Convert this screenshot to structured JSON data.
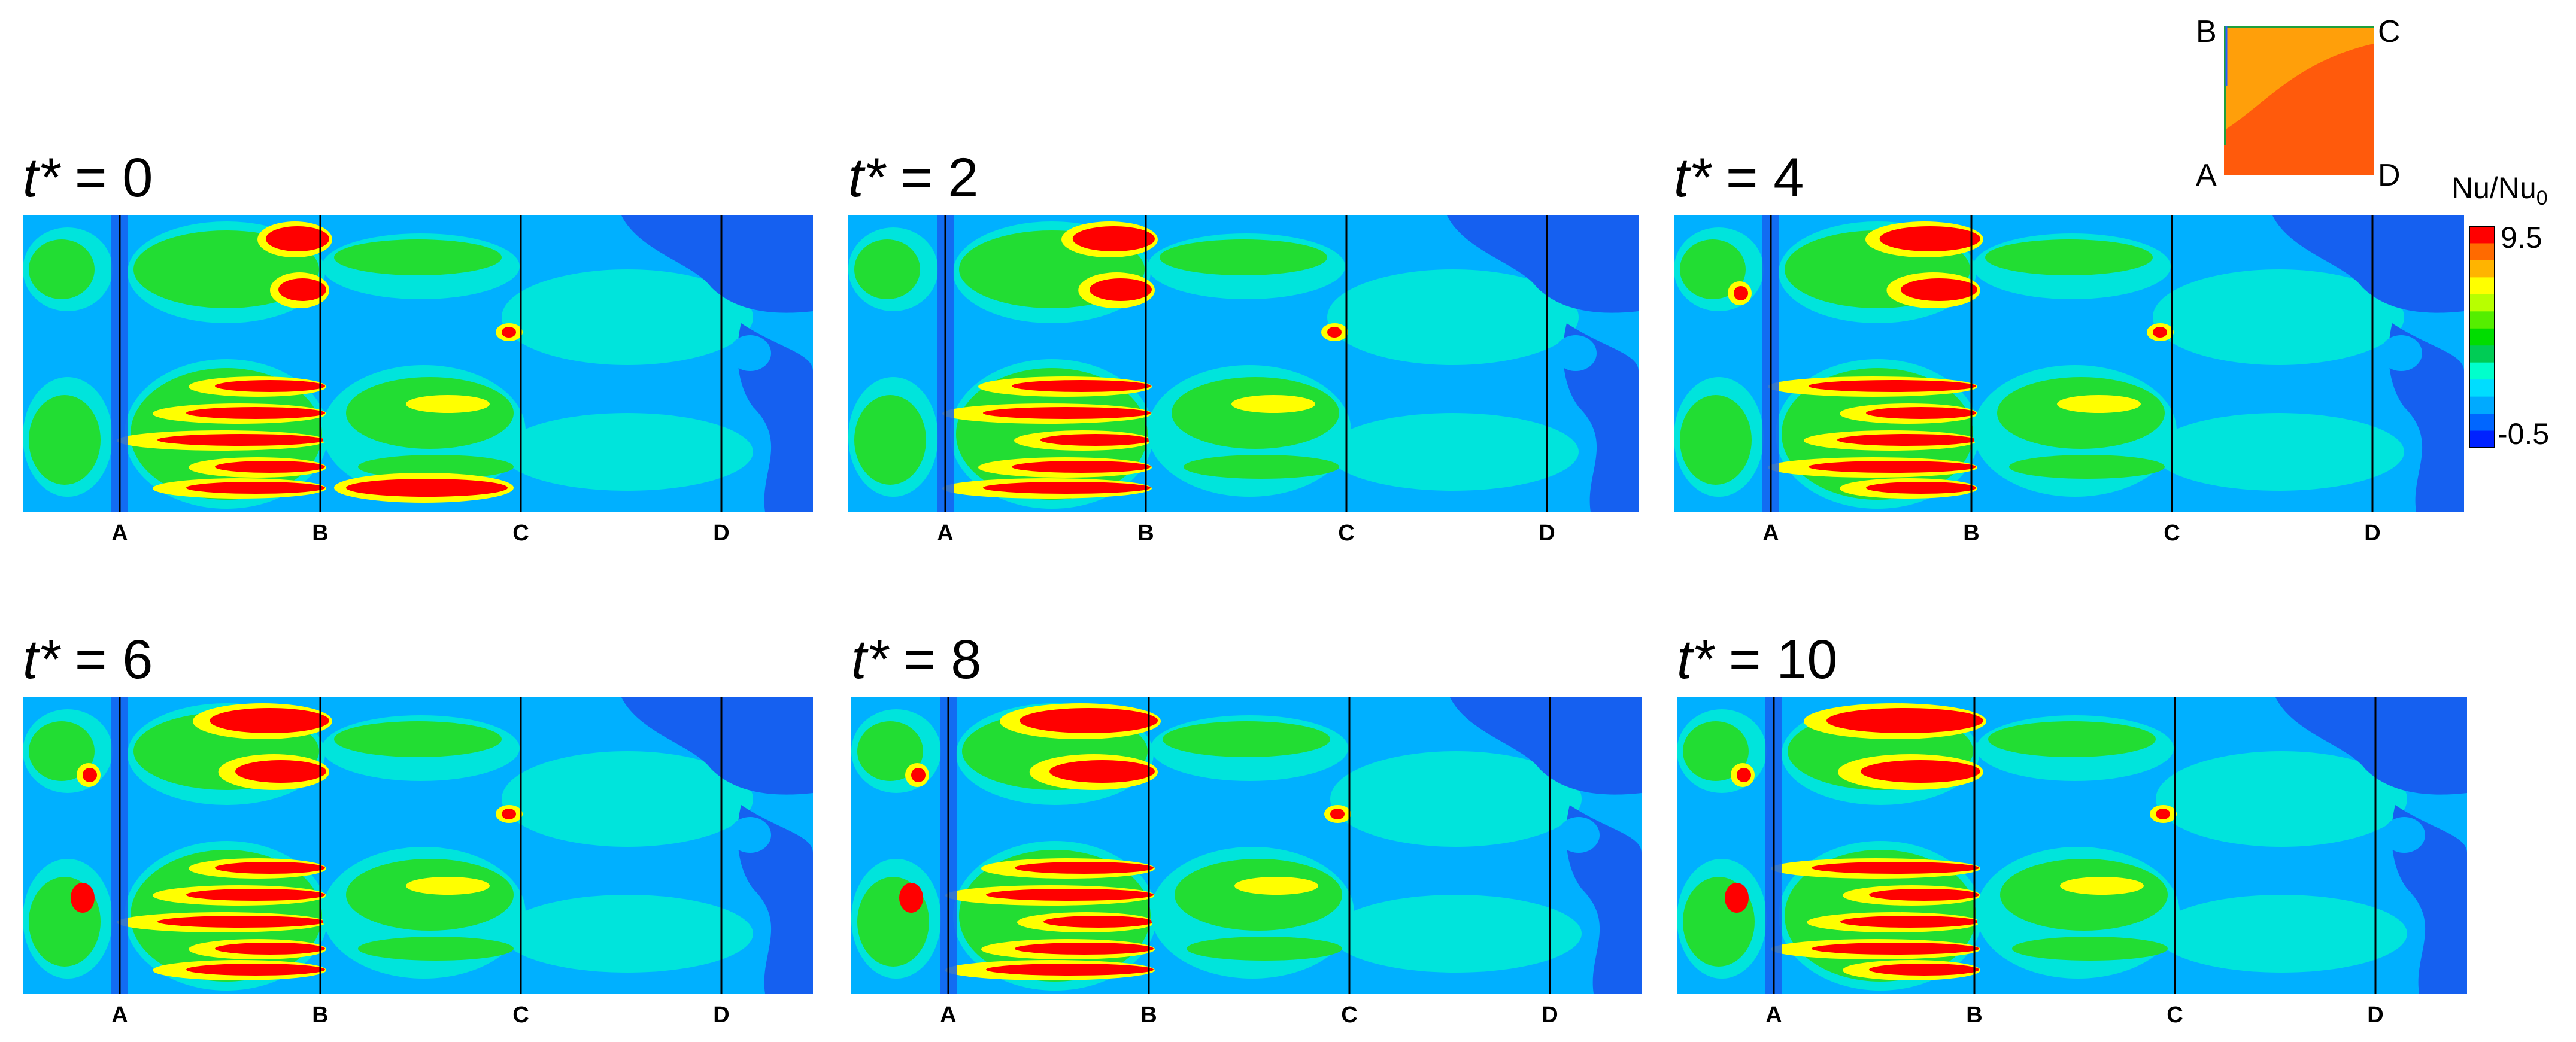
{
  "schematic": {
    "corners": {
      "a": "A",
      "b": "B",
      "c": "C",
      "d": "D"
    },
    "colors": {
      "outer": "#ff9f0a",
      "inner": "#ff5a0c",
      "edge": "#1fa03c"
    }
  },
  "colorbar": {
    "title": "Nu/Nu",
    "title_sub": "0",
    "max_label": "9.5",
    "min_label": "-0.5",
    "colors": [
      "#ff0000",
      "#ff6a00",
      "#ffb400",
      "#ffff00",
      "#b8ff00",
      "#55ee00",
      "#00dd00",
      "#00cc55",
      "#00ffcc",
      "#00ddff",
      "#00aaff",
      "#0066ff",
      "#0022ff"
    ]
  },
  "chart_data": [
    {
      "type": "heatmap",
      "title_var": "t*",
      "title_eq": " = 0",
      "time": 0,
      "x_ticks": [
        "A",
        "B",
        "C",
        "D"
      ],
      "value_range": [
        -0.5,
        9.5
      ],
      "variable": "Nu/Nu0"
    },
    {
      "type": "heatmap",
      "title_var": "t*",
      "title_eq": " = 2",
      "time": 2,
      "x_ticks": [
        "A",
        "B",
        "C",
        "D"
      ],
      "value_range": [
        -0.5,
        9.5
      ],
      "variable": "Nu/Nu0"
    },
    {
      "type": "heatmap",
      "title_var": "t*",
      "title_eq": " = 4",
      "time": 4,
      "x_ticks": [
        "A",
        "B",
        "C",
        "D"
      ],
      "value_range": [
        -0.5,
        9.5
      ],
      "variable": "Nu/Nu0"
    },
    {
      "type": "heatmap",
      "title_var": "t*",
      "title_eq": " = 6",
      "time": 6,
      "x_ticks": [
        "A",
        "B",
        "C",
        "D"
      ],
      "value_range": [
        -0.5,
        9.5
      ],
      "variable": "Nu/Nu0"
    },
    {
      "type": "heatmap",
      "title_var": "t*",
      "title_eq": " = 8",
      "time": 8,
      "x_ticks": [
        "A",
        "B",
        "C",
        "D"
      ],
      "value_range": [
        -0.5,
        9.5
      ],
      "variable": "Nu/Nu0"
    },
    {
      "type": "heatmap",
      "title_var": "t*",
      "title_eq": " = 10",
      "time": 10,
      "x_ticks": [
        "A",
        "B",
        "C",
        "D"
      ],
      "value_range": [
        -0.5,
        9.5
      ],
      "variable": "Nu/Nu0"
    }
  ]
}
